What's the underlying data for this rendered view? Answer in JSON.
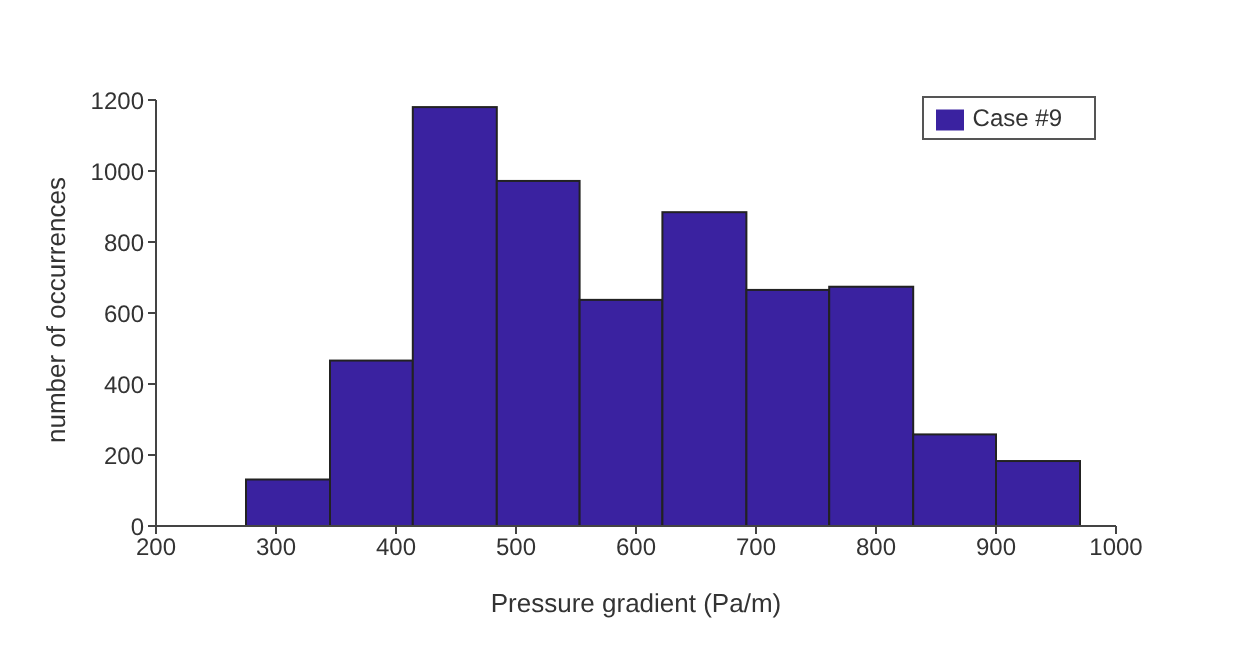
{
  "chart_data": {
    "type": "histogram",
    "xlabel": "Pressure gradient (Pa/m)",
    "ylabel": "number of occurrences",
    "bins": [
      275,
      345,
      414,
      484,
      553,
      622,
      692,
      761,
      831,
      900,
      970
    ],
    "series": [
      {
        "name": "Case #9",
        "color": "#3a22a0",
        "values": [
          131,
          466,
          1180,
          972,
          637,
          884,
          665,
          674,
          258,
          183
        ]
      }
    ],
    "xlim": [
      200,
      1000
    ],
    "xticks": [
      200,
      300,
      400,
      500,
      600,
      700,
      800,
      900,
      1000
    ],
    "ylim": [
      0,
      1200
    ],
    "yticks": [
      0,
      200,
      400,
      600,
      800,
      1000,
      1200
    ],
    "legend": "top right"
  }
}
